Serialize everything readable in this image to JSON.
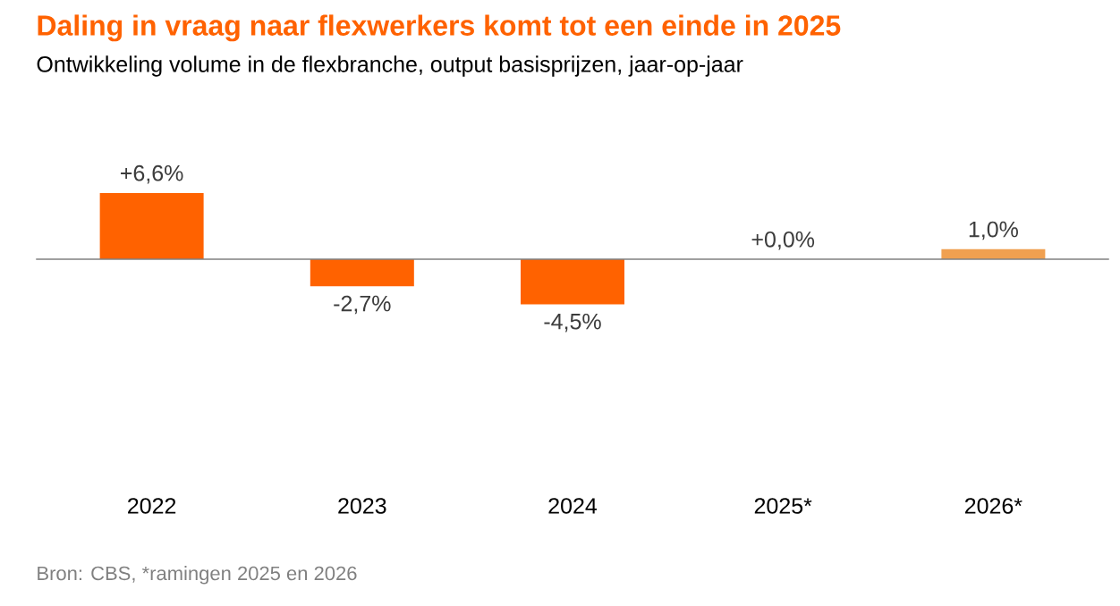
{
  "chart_data": {
    "type": "bar",
    "title": "Daling in vraag naar flexwerkers komt tot een einde in 2025",
    "subtitle": "Ontwikkeling volume in de flexbranche, output basisprijzen, jaar-op-jaar",
    "categories": [
      "2022",
      "2023",
      "2024",
      "2025*",
      "2026*"
    ],
    "values": [
      6.6,
      -2.7,
      -4.5,
      0.0,
      1.0
    ],
    "value_labels": [
      "+6,6%",
      "-2,7%",
      "-4,5%",
      "+0,0%",
      "1,0%"
    ],
    "colors": [
      "#ff6200",
      "#ff6200",
      "#ff6200",
      "#ff6200",
      "#f0a050"
    ],
    "tick_labels": "x",
    "annotations": [
      "Bron: CBS, *ramingen 2025 en 2026"
    ]
  }
}
